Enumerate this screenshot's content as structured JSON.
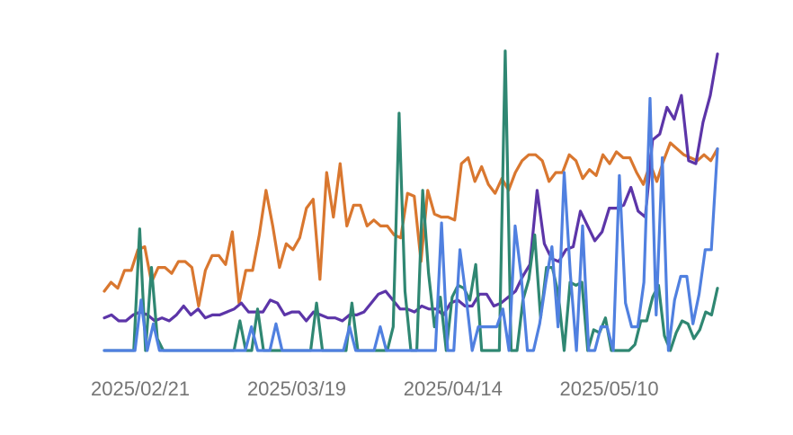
{
  "chart_data": {
    "type": "line",
    "title": "",
    "xlabel": "",
    "ylabel": "",
    "x_start": "2025-02-15",
    "x_end": "2025-05-28",
    "ylim": [
      0,
      100
    ],
    "grid": false,
    "legend": "none",
    "x_tick_labels": [
      {
        "label": "2025/02/21",
        "date": "2025-02-21"
      },
      {
        "label": "2025/03/19",
        "date": "2025-03-19"
      },
      {
        "label": "2025/04/14",
        "date": "2025-04-14"
      },
      {
        "label": "2025/05/10",
        "date": "2025-05-10"
      }
    ],
    "series": [
      {
        "color": "#d9772f",
        "values": [
          20,
          23,
          21,
          27,
          27,
          34,
          35,
          23,
          28,
          28,
          26,
          30,
          30,
          28,
          15,
          27,
          32,
          32,
          29,
          40,
          16,
          27,
          27,
          39,
          54,
          42,
          28,
          36,
          34,
          38,
          48,
          51,
          24,
          60,
          45,
          63,
          42,
          49,
          49,
          42,
          44,
          42,
          42,
          39,
          38,
          53,
          52,
          30,
          54,
          46,
          45,
          45,
          44,
          63,
          65,
          57,
          62,
          56,
          53,
          58,
          54,
          60,
          64,
          66,
          66,
          64,
          57,
          60,
          60,
          66,
          64,
          58,
          61,
          59,
          66,
          63,
          67,
          65,
          65,
          60,
          56,
          63,
          57,
          64,
          70,
          68,
          66,
          65,
          64,
          66,
          64,
          68
        ]
      },
      {
        "color": "#5c35a8",
        "values": [
          11,
          12,
          10,
          10,
          12,
          13,
          12,
          10,
          11,
          10,
          12,
          15,
          12,
          14,
          11,
          12,
          12,
          13,
          14,
          16,
          13,
          13,
          13,
          17,
          16,
          12,
          13,
          13,
          10,
          13,
          12,
          11,
          11,
          10,
          12,
          12,
          13,
          16,
          19,
          20,
          17,
          14,
          14,
          13,
          15,
          14,
          14,
          12,
          16,
          17,
          15,
          15,
          19,
          19,
          15,
          16,
          18,
          20,
          25,
          29,
          54,
          36,
          31,
          30,
          34,
          35,
          47,
          42,
          37,
          40,
          48,
          48,
          49,
          55,
          47,
          45,
          71,
          73,
          82,
          78,
          86,
          64,
          63,
          77,
          86,
          100
        ]
      },
      {
        "color": "#2f8772",
        "values": [
          0,
          0,
          0,
          0,
          0,
          0,
          41,
          0,
          28,
          4,
          0,
          0,
          0,
          0,
          0,
          0,
          0,
          0,
          0,
          0,
          0,
          0,
          0,
          10,
          0,
          0,
          14,
          0,
          0,
          0,
          0,
          0,
          0,
          0,
          0,
          0,
          16,
          0,
          0,
          0,
          0,
          0,
          16,
          0,
          0,
          0,
          0,
          0,
          0,
          8,
          80,
          20,
          0,
          0,
          54,
          26,
          8,
          18,
          0,
          18,
          22,
          21,
          17,
          29,
          0,
          0,
          0,
          0,
          101,
          0,
          0,
          17,
          24,
          39,
          11,
          28,
          28,
          19,
          0,
          23,
          22,
          23,
          0,
          7,
          6,
          11,
          0,
          0,
          0,
          0,
          2,
          10,
          10,
          18,
          22,
          5,
          0,
          6,
          10,
          9,
          4,
          7,
          13,
          12,
          21
        ]
      },
      {
        "color": "#5080e0",
        "values": [
          0,
          0,
          0,
          0,
          0,
          0,
          17,
          0,
          9,
          0,
          0,
          0,
          0,
          0,
          0,
          0,
          0,
          0,
          0,
          0,
          0,
          0,
          0,
          0,
          8,
          0,
          0,
          0,
          9,
          0,
          0,
          0,
          0,
          0,
          0,
          0,
          0,
          0,
          0,
          0,
          8,
          0,
          0,
          0,
          0,
          8,
          0,
          0,
          0,
          0,
          0,
          0,
          0,
          0,
          0,
          43,
          0,
          0,
          34,
          18,
          0,
          8,
          8,
          8,
          8,
          14,
          0,
          42,
          25,
          0,
          0,
          9,
          23,
          35,
          8,
          60,
          26,
          0,
          42,
          0,
          0,
          8,
          8,
          0,
          59,
          16,
          8,
          8,
          23,
          85,
          12,
          65,
          0,
          17,
          25,
          25,
          9,
          19,
          34,
          34,
          68
        ]
      }
    ]
  }
}
